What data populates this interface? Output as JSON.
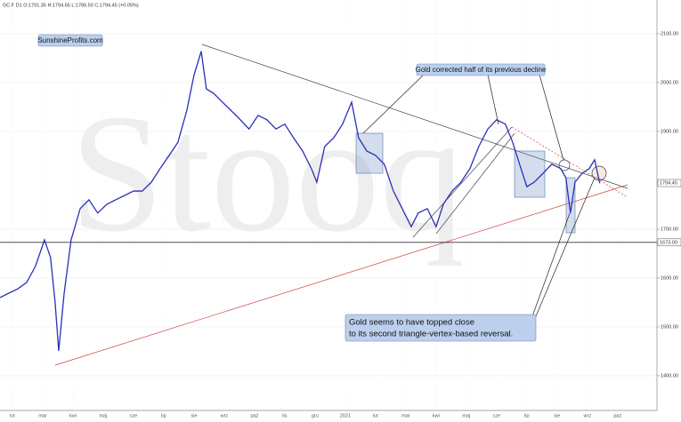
{
  "chart_data": {
    "type": "line",
    "header": "GC.F  D1  O:1791.35  H:1794.65  L:1786.50  C:1794.45  (+0.05%)",
    "watermark": "Stooq",
    "brand": "SunshineProfits.com",
    "annotations": [
      "Gold corrected half of its previous decline",
      "Gold seems to have topped close",
      "to its second triangle-vertex-based reversal."
    ],
    "color": "#2b30b8",
    "grid": true,
    "xlim": [
      -0.41,
      21.3
    ],
    "ylim": [
      1329,
      2169
    ],
    "xticks": [
      {
        "value": 0,
        "label": "lut"
      },
      {
        "value": 1,
        "label": "mar"
      },
      {
        "value": 2,
        "label": "kwi"
      },
      {
        "value": 3,
        "label": "maj"
      },
      {
        "value": 4,
        "label": "cze"
      },
      {
        "value": 5,
        "label": "lip"
      },
      {
        "value": 6,
        "label": "sie"
      },
      {
        "value": 7,
        "label": "wrz"
      },
      {
        "value": 8,
        "label": "paź"
      },
      {
        "value": 9,
        "label": "lis"
      },
      {
        "value": 10,
        "label": "gru"
      },
      {
        "value": 11,
        "label": "2021"
      },
      {
        "value": 12,
        "label": "lut"
      },
      {
        "value": 13,
        "label": "mar"
      },
      {
        "value": 14,
        "label": "kwi"
      },
      {
        "value": 15,
        "label": "maj"
      },
      {
        "value": 16,
        "label": "cze"
      },
      {
        "value": 17,
        "label": "lip"
      },
      {
        "value": 18,
        "label": "sie"
      },
      {
        "value": 19,
        "label": "wrz"
      },
      {
        "value": 20,
        "label": "paź"
      }
    ],
    "yticks": [
      {
        "value": 2100,
        "label": "2100.00"
      },
      {
        "value": 2000,
        "label": "2000.00"
      },
      {
        "value": 1900,
        "label": "1900.00"
      },
      {
        "value": 1700,
        "label": "1700.00"
      },
      {
        "value": 1600,
        "label": "1600.00"
      },
      {
        "value": 1500,
        "label": "1500.00"
      },
      {
        "value": 1400,
        "label": "1400.00"
      }
    ],
    "hline": {
      "value": 1673,
      "label": "1673.00"
    },
    "last": {
      "value": 1794.45,
      "label": "1794.45"
    },
    "x": [
      -0.41,
      -0.12,
      0.18,
      0.47,
      0.76,
      1.06,
      1.26,
      1.41,
      1.53,
      1.71,
      1.94,
      2.24,
      2.53,
      2.82,
      3.12,
      3.41,
      3.71,
      4.0,
      4.29,
      4.59,
      4.88,
      5.18,
      5.47,
      5.76,
      6.0,
      6.24,
      6.41,
      6.65,
      6.94,
      7.24,
      7.53,
      7.82,
      8.12,
      8.41,
      8.71,
      9.0,
      9.29,
      9.59,
      9.88,
      10.06,
      10.32,
      10.62,
      10.91,
      11.21,
      11.44,
      11.71,
      12.0,
      12.29,
      12.59,
      12.88,
      13.18,
      13.41,
      13.71,
      14.0,
      14.24,
      14.53,
      14.82,
      15.12,
      15.41,
      15.71,
      16.0,
      16.29,
      16.53,
      16.76,
      17.0,
      17.24,
      17.53,
      17.82,
      18.12,
      18.29,
      18.44,
      18.59,
      18.82,
      19.06,
      19.24,
      19.41
    ],
    "values": [
      1560,
      1569,
      1578,
      1591,
      1624,
      1678,
      1642,
      1551,
      1451,
      1569,
      1678,
      1742,
      1760,
      1733,
      1751,
      1760,
      1769,
      1778,
      1778,
      1796,
      1824,
      1851,
      1878,
      1942,
      2015,
      2064,
      1987,
      1978,
      1960,
      1942,
      1924,
      1905,
      1933,
      1924,
      1905,
      1915,
      1887,
      1860,
      1824,
      1796,
      1869,
      1887,
      1915,
      1960,
      1887,
      1860,
      1851,
      1833,
      1778,
      1742,
      1705,
      1733,
      1742,
      1705,
      1751,
      1778,
      1796,
      1824,
      1869,
      1905,
      1924,
      1915,
      1878,
      1833,
      1787,
      1796,
      1814,
      1833,
      1824,
      1805,
      1733,
      1796,
      1814,
      1824,
      1842,
      1794
    ]
  }
}
